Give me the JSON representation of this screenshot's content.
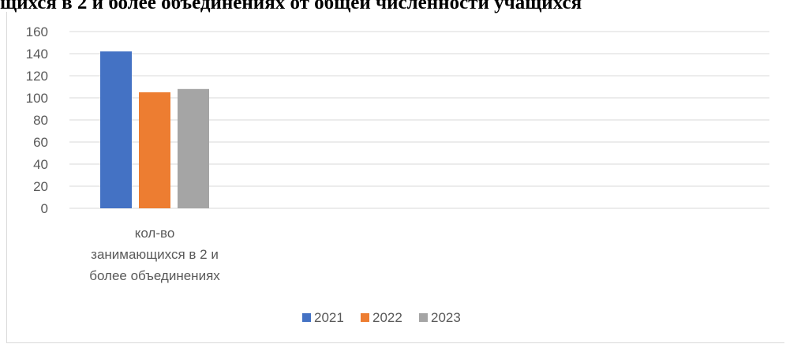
{
  "header": {
    "text": "щихся в 2 и более объединениях от общей численности учащихся"
  },
  "chart_data": {
    "type": "bar",
    "categories": [
      "кол-во занимающихся в 2 и более объединениях"
    ],
    "category_label_lines": [
      [
        "кол-во",
        "занимающихся в 2 и",
        "более объединениях"
      ]
    ],
    "series": [
      {
        "name": "2021",
        "values": [
          142
        ],
        "color": "#4472C4"
      },
      {
        "name": "2022",
        "values": [
          105
        ],
        "color": "#ED7D31"
      },
      {
        "name": "2023",
        "values": [
          108
        ],
        "color": "#A5A5A5"
      }
    ],
    "ylim": [
      0,
      160
    ],
    "y_ticks": [
      "0",
      "20",
      "40",
      "60",
      "80",
      "100",
      "120",
      "140",
      "160"
    ],
    "grid": true,
    "legend_position": "bottom",
    "colors": {
      "grid": "#d9d9d9",
      "axis_text": "#595959",
      "axis_line": "#d9d9d9"
    }
  }
}
